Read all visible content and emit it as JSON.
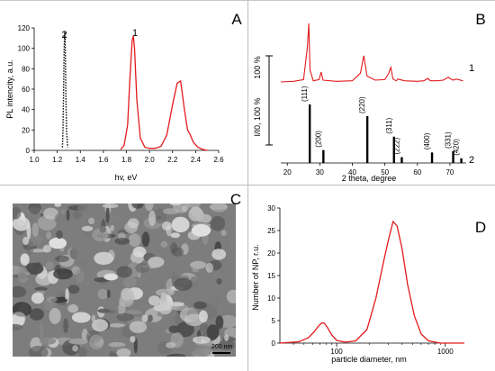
{
  "panels": {
    "A": {
      "letter": "A"
    },
    "B": {
      "letter": "B"
    },
    "C": {
      "letter": "C",
      "scale_label": "200 nm"
    },
    "D": {
      "letter": "D"
    }
  },
  "colors": {
    "series_red": "#e31a1c",
    "series_dark": "#000000",
    "axis": "#000000",
    "sem_gray": "#8a8a8a"
  },
  "chart_data": [
    {
      "type": "line",
      "panel": "A",
      "xlabel": "hv, eV",
      "ylabel": "PL intencity, a.u.",
      "xlim": [
        1.0,
        2.6
      ],
      "ylim": [
        0,
        120
      ],
      "xticks": [
        "1.0",
        "1.2",
        "1.4",
        "1.6",
        "1.8",
        "2.0",
        "2.2",
        "2.4",
        "2.6"
      ],
      "yticks": [
        "0",
        "20",
        "40",
        "60",
        "80",
        "100",
        "120"
      ],
      "series": [
        {
          "name": "2",
          "style": "dotted",
          "color": "#000000",
          "x": [
            1.245,
            1.25,
            1.255,
            1.26,
            1.265,
            1.27,
            1.275,
            1.28,
            1.29
          ],
          "y": [
            3,
            20,
            60,
            100,
            117,
            100,
            55,
            20,
            3
          ]
        },
        {
          "name": "1",
          "style": "solid",
          "color": "#e31a1c",
          "x": [
            1.75,
            1.78,
            1.81,
            1.83,
            1.85,
            1.86,
            1.87,
            1.89,
            1.92,
            1.96,
            2.0,
            2.05,
            2.1,
            2.15,
            2.2,
            2.24,
            2.27,
            2.3,
            2.33,
            2.35,
            2.38,
            2.42,
            2.46,
            2.5
          ],
          "y": [
            1,
            5,
            25,
            70,
            108,
            112,
            100,
            50,
            12,
            3,
            2,
            2,
            4,
            15,
            45,
            66,
            68,
            42,
            20,
            16,
            8,
            3,
            1,
            0
          ]
        }
      ]
    },
    {
      "type": "line",
      "panel": "B",
      "xlabel": "2 theta, degree",
      "ylabel": "I/I0, 100 %",
      "xlim": [
        18,
        75
      ],
      "xticks": [
        "20",
        "30",
        "40",
        "50",
        "60",
        "70"
      ],
      "series": [
        {
          "name": "1",
          "style": "solid",
          "color": "#e31a1c",
          "x": [
            18,
            22,
            25,
            26.2,
            26.6,
            27,
            28,
            29.8,
            30.4,
            31,
            35,
            40,
            42.5,
            43.5,
            44.5,
            47,
            50,
            51.2,
            51.8,
            52.5,
            53.5,
            54,
            56,
            60,
            62,
            63.2,
            64,
            66,
            68,
            69.5,
            70,
            71,
            72,
            74
          ],
          "y": [
            0,
            1,
            4,
            60,
            100,
            20,
            2,
            4,
            17,
            3,
            1,
            2,
            15,
            45,
            10,
            3,
            4,
            15,
            25,
            5,
            2,
            5,
            2,
            1,
            2,
            6,
            2,
            2,
            3,
            8,
            6,
            3,
            5,
            2
          ]
        }
      ],
      "reference_lines": [
        {
          "label": "(111)",
          "x": 26.9,
          "h": 100
        },
        {
          "label": "(200)",
          "x": 31.1,
          "h": 22
        },
        {
          "label": "(220)",
          "x": 44.6,
          "h": 80
        },
        {
          "label": "(311)",
          "x": 52.8,
          "h": 45
        },
        {
          "label": "(222)",
          "x": 55.2,
          "h": 10
        },
        {
          "label": "(400)",
          "x": 64.5,
          "h": 18
        },
        {
          "label": "(331)",
          "x": 71.0,
          "h": 20
        },
        {
          "label": "(420)",
          "x": 73.5,
          "h": 8
        }
      ],
      "reference_name": "2",
      "scalebar_label": "100 %"
    },
    {
      "type": "line",
      "panel": "D",
      "xlabel": "particle diameter, nm",
      "ylabel": "Number of NP, r.u.",
      "xscale": "log",
      "xlim": [
        30,
        1500
      ],
      "ylim": [
        0,
        30
      ],
      "xticks": [
        "100",
        "1000"
      ],
      "yticks": [
        "0",
        "5",
        "10",
        "15",
        "20",
        "25",
        "30"
      ],
      "series": [
        {
          "name": "",
          "style": "solid",
          "color": "#e31a1c",
          "x": [
            30,
            45,
            55,
            62,
            68,
            73,
            77,
            82,
            90,
            100,
            120,
            150,
            190,
            230,
            270,
            300,
            330,
            360,
            400,
            450,
            520,
            600,
            700,
            900,
            1500
          ],
          "y": [
            0,
            0.3,
            1.2,
            2.5,
            3.8,
            4.5,
            4.4,
            3.5,
            1.8,
            0.6,
            0.2,
            0.5,
            3,
            10,
            18,
            23,
            27,
            26,
            21,
            13,
            6,
            2,
            0.5,
            0,
            0
          ]
        }
      ]
    }
  ]
}
